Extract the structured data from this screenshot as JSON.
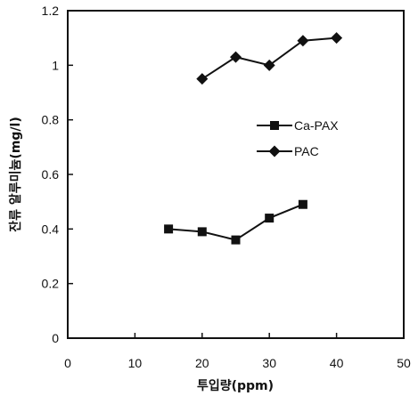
{
  "chart_data": {
    "type": "line",
    "xlabel": "투입량(ppm)",
    "ylabel": "잔류 알루미늄(mg/l)",
    "xlim": [
      0,
      50
    ],
    "ylim": [
      0,
      1.2
    ],
    "xticks": [
      0,
      10,
      20,
      30,
      40,
      50
    ],
    "yticks": [
      0,
      0.2,
      0.4,
      0.6,
      0.8,
      1,
      1.2
    ],
    "xtick_labels": [
      "0",
      "10",
      "20",
      "30",
      "40",
      "50"
    ],
    "ytick_labels": [
      "0",
      "0.2",
      "0.4",
      "0.6",
      "0.8",
      "1",
      "1.2"
    ],
    "grid": false,
    "legend_position": "right",
    "series": [
      {
        "name": "Ca-PAX",
        "marker": "square",
        "x": [
          15,
          20,
          25,
          30,
          35
        ],
        "y": [
          0.4,
          0.39,
          0.36,
          0.44,
          0.49
        ]
      },
      {
        "name": "PAC",
        "marker": "diamond",
        "x": [
          20,
          25,
          30,
          35,
          40
        ],
        "y": [
          0.95,
          1.03,
          1.0,
          1.09,
          1.1
        ]
      }
    ],
    "colors": {
      "line": "#111111",
      "background": "#ffffff"
    }
  }
}
